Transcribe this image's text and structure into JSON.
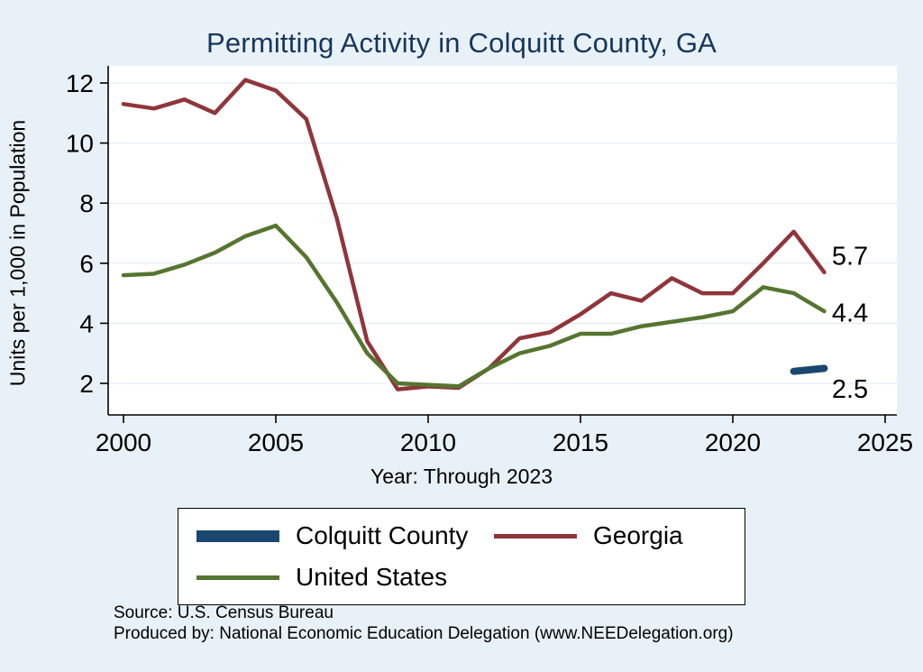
{
  "title": "Permitting Activity in Colquitt County, GA",
  "y_axis_label": "Units per 1,000 in Population",
  "x_axis_label": "Year: Through 2023",
  "notes": {
    "source": "Source: U.S. Census Bureau",
    "produced_by": "Produced by: National Economic Education Delegation (www.NEEDelegation.org)"
  },
  "chart_data": {
    "type": "line",
    "title": "Permitting Activity in Colquitt County, GA",
    "xlabel": "Year: Through 2023",
    "ylabel": "Units per 1,000 in Population",
    "x_ticks": [
      2000,
      2005,
      2010,
      2015,
      2020,
      2025
    ],
    "y_ticks": [
      2,
      4,
      6,
      8,
      10,
      12
    ],
    "xlim": [
      1999.5,
      2025.5
    ],
    "ylim": [
      0.95,
      12.55
    ],
    "grid": "faint-horizontal",
    "legend_position": "bottom",
    "series": [
      {
        "name": "Colquitt County",
        "color": "#1a476f",
        "width": 8,
        "x": [
          2022,
          2023
        ],
        "values": [
          2.4,
          2.5
        ]
      },
      {
        "name": "Georgia",
        "color": "#90353b",
        "width": 4.5,
        "x": [
          2000,
          2001,
          2002,
          2003,
          2004,
          2005,
          2006,
          2007,
          2008,
          2009,
          2010,
          2011,
          2012,
          2013,
          2014,
          2015,
          2016,
          2017,
          2018,
          2019,
          2020,
          2021,
          2022,
          2023
        ],
        "values": [
          11.3,
          11.15,
          11.45,
          11.0,
          12.1,
          11.75,
          10.8,
          7.5,
          3.4,
          1.8,
          1.9,
          1.85,
          2.5,
          3.5,
          3.7,
          4.3,
          5.0,
          4.75,
          5.5,
          5.0,
          5.0,
          6.0,
          7.05,
          5.7
        ]
      },
      {
        "name": "United States",
        "color": "#55752f",
        "width": 4.5,
        "x": [
          2000,
          2001,
          2002,
          2003,
          2004,
          2005,
          2006,
          2007,
          2008,
          2009,
          2010,
          2011,
          2012,
          2013,
          2014,
          2015,
          2016,
          2017,
          2018,
          2019,
          2020,
          2021,
          2022,
          2023
        ],
        "values": [
          5.6,
          5.65,
          5.95,
          6.35,
          6.9,
          7.25,
          6.2,
          4.7,
          3.0,
          2.0,
          1.95,
          1.9,
          2.5,
          3.0,
          3.25,
          3.65,
          3.65,
          3.9,
          4.05,
          4.2,
          4.4,
          5.2,
          5.0,
          4.4
        ]
      }
    ],
    "end_labels": [
      {
        "text": "5.7",
        "x": 2023.25,
        "y": 6.25
      },
      {
        "text": "4.4",
        "x": 2023.25,
        "y": 4.35
      },
      {
        "text": "2.5",
        "x": 2023.25,
        "y": 1.82
      }
    ]
  }
}
